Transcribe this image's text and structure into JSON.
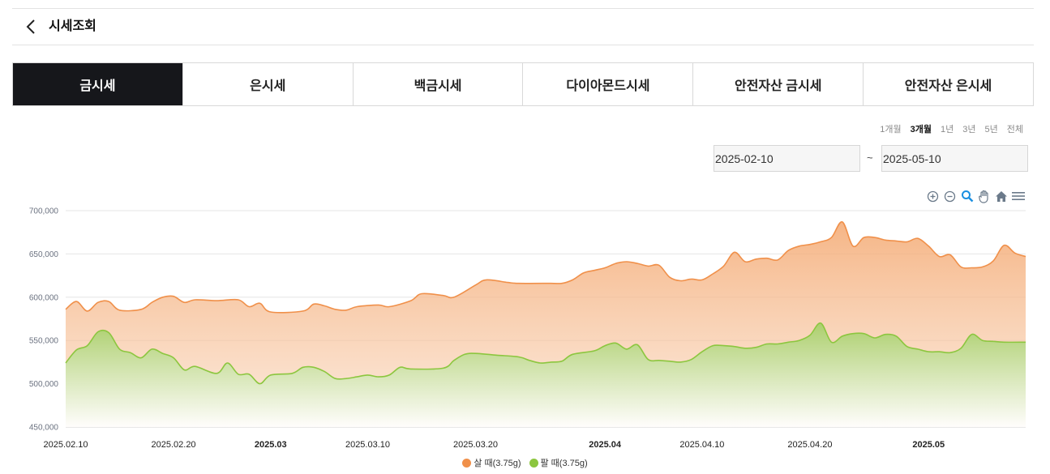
{
  "header": {
    "title": "시세조회"
  },
  "tabs": [
    {
      "label": "금시세",
      "active": true
    },
    {
      "label": "은시세",
      "active": false
    },
    {
      "label": "백금시세",
      "active": false
    },
    {
      "label": "다이아몬드시세",
      "active": false
    },
    {
      "label": "안전자산 금시세",
      "active": false
    },
    {
      "label": "안전자산 은시세",
      "active": false
    }
  ],
  "periods": [
    {
      "label": "1개월",
      "active": false
    },
    {
      "label": "3개월",
      "active": true
    },
    {
      "label": "1년",
      "active": false
    },
    {
      "label": "3년",
      "active": false
    },
    {
      "label": "5년",
      "active": false
    },
    {
      "label": "전체",
      "active": false
    }
  ],
  "date_range": {
    "start": "2025-02-10",
    "separator": "~",
    "end": "2025-05-10"
  },
  "toolbar": [
    "zoom-in-icon",
    "zoom-out-icon",
    "zoom-select-icon",
    "pan-hand-icon",
    "reset-home-icon",
    "menu-icon"
  ],
  "colors": {
    "buy": "#f0904a",
    "sell": "#8cc63f",
    "active_tab": "#16171b"
  },
  "chart_data": {
    "type": "area",
    "y_ticks": [
      "700,000",
      "650,000",
      "600,000",
      "550,000",
      "500,000",
      "450,000"
    ],
    "ylim": [
      450000,
      700000
    ],
    "x_tick_labels": [
      {
        "label": "2025.02.10",
        "x": "2025-02-10",
        "bold": false
      },
      {
        "label": "2025.02.20",
        "x": "2025-02-20",
        "bold": false
      },
      {
        "label": "2025.03",
        "x": "2025-03-01",
        "bold": true
      },
      {
        "label": "2025.03.10",
        "x": "2025-03-10",
        "bold": false
      },
      {
        "label": "2025.03.20",
        "x": "2025-03-20",
        "bold": false
      },
      {
        "label": "2025.04",
        "x": "2025-04-01",
        "bold": true
      },
      {
        "label": "2025.04.10",
        "x": "2025-04-10",
        "bold": false
      },
      {
        "label": "2025.04.20",
        "x": "2025-04-20",
        "bold": false
      },
      {
        "label": "2025.05",
        "x": "2025-05-01",
        "bold": true
      }
    ],
    "xlim": [
      "2025-02-10",
      "2025-05-10"
    ],
    "grid": true,
    "legend_position": "bottom-center",
    "series": [
      {
        "name": "살 때(3.75g)",
        "color": "#f0904a",
        "points": [
          [
            "2025-02-10",
            586000
          ],
          [
            "2025-02-11",
            595000
          ],
          [
            "2025-02-12",
            584000
          ],
          [
            "2025-02-13",
            594000
          ],
          [
            "2025-02-14",
            595000
          ],
          [
            "2025-02-15",
            585000
          ],
          [
            "2025-02-17",
            586000
          ],
          [
            "2025-02-18",
            594000
          ],
          [
            "2025-02-19",
            600000
          ],
          [
            "2025-02-20",
            601000
          ],
          [
            "2025-02-21",
            594000
          ],
          [
            "2025-02-22",
            597000
          ],
          [
            "2025-02-24",
            596000
          ],
          [
            "2025-02-26",
            597000
          ],
          [
            "2025-02-27",
            589000
          ],
          [
            "2025-02-28",
            593000
          ],
          [
            "2025-03-01",
            583000
          ],
          [
            "2025-03-04",
            584000
          ],
          [
            "2025-03-05",
            592000
          ],
          [
            "2025-03-06",
            590000
          ],
          [
            "2025-03-07",
            586000
          ],
          [
            "2025-03-08",
            585000
          ],
          [
            "2025-03-09",
            589000
          ],
          [
            "2025-03-11",
            591000
          ],
          [
            "2025-03-12",
            589000
          ],
          [
            "2025-03-14",
            596000
          ],
          [
            "2025-03-15",
            604000
          ],
          [
            "2025-03-17",
            602000
          ],
          [
            "2025-03-18",
            600000
          ],
          [
            "2025-03-20",
            614000
          ],
          [
            "2025-03-21",
            620000
          ],
          [
            "2025-03-23",
            617000
          ],
          [
            "2025-03-24",
            616000
          ],
          [
            "2025-03-27",
            616000
          ],
          [
            "2025-03-28",
            616000
          ],
          [
            "2025-03-29",
            620000
          ],
          [
            "2025-03-30",
            628000
          ],
          [
            "2025-03-31",
            631000
          ],
          [
            "2025-04-01",
            634000
          ],
          [
            "2025-04-02",
            639000
          ],
          [
            "2025-04-03",
            641000
          ],
          [
            "2025-04-04",
            639000
          ],
          [
            "2025-04-05",
            636000
          ],
          [
            "2025-04-06",
            637000
          ],
          [
            "2025-04-07",
            623000
          ],
          [
            "2025-04-08",
            619000
          ],
          [
            "2025-04-09",
            621000
          ],
          [
            "2025-04-10",
            620000
          ],
          [
            "2025-04-11",
            627000
          ],
          [
            "2025-04-12",
            636000
          ],
          [
            "2025-04-13",
            652000
          ],
          [
            "2025-04-14",
            641000
          ],
          [
            "2025-04-15",
            644000
          ],
          [
            "2025-04-16",
            645000
          ],
          [
            "2025-04-17",
            643000
          ],
          [
            "2025-04-18",
            654000
          ],
          [
            "2025-04-19",
            659000
          ],
          [
            "2025-04-20",
            661000
          ],
          [
            "2025-04-21",
            664000
          ],
          [
            "2025-04-22",
            669000
          ],
          [
            "2025-04-23",
            687000
          ],
          [
            "2025-04-24",
            659000
          ],
          [
            "2025-04-25",
            669000
          ],
          [
            "2025-04-26",
            669000
          ],
          [
            "2025-04-27",
            666000
          ],
          [
            "2025-04-28",
            665000
          ],
          [
            "2025-04-29",
            664000
          ],
          [
            "2025-04-30",
            668000
          ],
          [
            "2025-05-01",
            659000
          ],
          [
            "2025-05-02",
            647000
          ],
          [
            "2025-05-03",
            649000
          ],
          [
            "2025-05-04",
            635000
          ],
          [
            "2025-05-05",
            634000
          ],
          [
            "2025-05-06",
            635000
          ],
          [
            "2025-05-07",
            642000
          ],
          [
            "2025-05-08",
            660000
          ],
          [
            "2025-05-09",
            651000
          ],
          [
            "2025-05-10",
            647000
          ]
        ]
      },
      {
        "name": "팔 때(3.75g)",
        "color": "#8cc63f",
        "points": [
          [
            "2025-02-10",
            524000
          ],
          [
            "2025-02-11",
            539000
          ],
          [
            "2025-02-12",
            544000
          ],
          [
            "2025-02-13",
            560000
          ],
          [
            "2025-02-14",
            559000
          ],
          [
            "2025-02-15",
            540000
          ],
          [
            "2025-02-16",
            536000
          ],
          [
            "2025-02-17",
            530000
          ],
          [
            "2025-02-18",
            540000
          ],
          [
            "2025-02-19",
            535000
          ],
          [
            "2025-02-20",
            530000
          ],
          [
            "2025-02-21",
            516000
          ],
          [
            "2025-02-22",
            520000
          ],
          [
            "2025-02-24",
            512000
          ],
          [
            "2025-02-25",
            524000
          ],
          [
            "2025-02-26",
            511000
          ],
          [
            "2025-02-27",
            511000
          ],
          [
            "2025-02-28",
            500000
          ],
          [
            "2025-03-01",
            510000
          ],
          [
            "2025-03-03",
            512000
          ],
          [
            "2025-03-04",
            519000
          ],
          [
            "2025-03-05",
            519000
          ],
          [
            "2025-03-06",
            514000
          ],
          [
            "2025-03-07",
            506000
          ],
          [
            "2025-03-08",
            506000
          ],
          [
            "2025-03-09",
            508000
          ],
          [
            "2025-03-10",
            510000
          ],
          [
            "2025-03-11",
            508000
          ],
          [
            "2025-03-12",
            510000
          ],
          [
            "2025-03-13",
            519000
          ],
          [
            "2025-03-14",
            517000
          ],
          [
            "2025-03-17",
            518000
          ],
          [
            "2025-03-18",
            527000
          ],
          [
            "2025-03-19",
            534000
          ],
          [
            "2025-03-20",
            535000
          ],
          [
            "2025-03-22",
            533000
          ],
          [
            "2025-03-24",
            531000
          ],
          [
            "2025-03-25",
            527000
          ],
          [
            "2025-03-26",
            524000
          ],
          [
            "2025-03-27",
            525000
          ],
          [
            "2025-03-28",
            526000
          ],
          [
            "2025-03-29",
            534000
          ],
          [
            "2025-03-31",
            538000
          ],
          [
            "2025-04-01",
            544000
          ],
          [
            "2025-04-02",
            547000
          ],
          [
            "2025-04-03",
            540000
          ],
          [
            "2025-04-04",
            545000
          ],
          [
            "2025-04-05",
            528000
          ],
          [
            "2025-04-06",
            527000
          ],
          [
            "2025-04-07",
            526000
          ],
          [
            "2025-04-08",
            525000
          ],
          [
            "2025-04-09",
            528000
          ],
          [
            "2025-04-10",
            537000
          ],
          [
            "2025-04-11",
            544000
          ],
          [
            "2025-04-12",
            544000
          ],
          [
            "2025-04-13",
            543000
          ],
          [
            "2025-04-14",
            541000
          ],
          [
            "2025-04-15",
            542000
          ],
          [
            "2025-04-16",
            546000
          ],
          [
            "2025-04-17",
            546000
          ],
          [
            "2025-04-18",
            548000
          ],
          [
            "2025-04-19",
            550000
          ],
          [
            "2025-04-20",
            556000
          ],
          [
            "2025-04-21",
            570000
          ],
          [
            "2025-04-22",
            548000
          ],
          [
            "2025-04-23",
            555000
          ],
          [
            "2025-04-24",
            558000
          ],
          [
            "2025-04-25",
            558000
          ],
          [
            "2025-04-26",
            553000
          ],
          [
            "2025-04-27",
            557000
          ],
          [
            "2025-04-28",
            555000
          ],
          [
            "2025-04-29",
            543000
          ],
          [
            "2025-04-30",
            540000
          ],
          [
            "2025-05-01",
            537000
          ],
          [
            "2025-05-02",
            537000
          ],
          [
            "2025-05-03",
            536000
          ],
          [
            "2025-05-04",
            541000
          ],
          [
            "2025-05-05",
            557000
          ],
          [
            "2025-05-06",
            550000
          ],
          [
            "2025-05-07",
            549000
          ],
          [
            "2025-05-08",
            548000
          ],
          [
            "2025-05-10",
            548000
          ]
        ]
      }
    ]
  }
}
